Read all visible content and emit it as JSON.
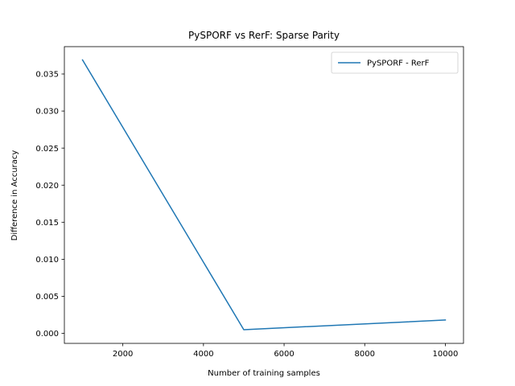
{
  "chart_data": {
    "type": "line",
    "title": "PySPORF vs RerF: Sparse Parity",
    "xlabel": "Number of training samples",
    "ylabel": "Difference in Accuracy",
    "xlim": [
      550,
      10450
    ],
    "ylim": [
      -0.00135,
      0.03869
    ],
    "xticks": [
      2000,
      4000,
      6000,
      8000,
      10000
    ],
    "xtick_labels": [
      "2000",
      "4000",
      "6000",
      "8000",
      "10000"
    ],
    "yticks": [
      0.0,
      0.005,
      0.01,
      0.015,
      0.02,
      0.025,
      0.03,
      0.035
    ],
    "ytick_labels": [
      "0.000",
      "0.005",
      "0.010",
      "0.015",
      "0.020",
      "0.025",
      "0.030",
      "0.035"
    ],
    "grid": false,
    "legend_position": "top-right",
    "series": [
      {
        "name": "PySPORF - RerF",
        "color": "#1f77b4",
        "x": [
          1000,
          5000,
          10000
        ],
        "y": [
          0.0369,
          0.0005,
          0.0018
        ]
      }
    ]
  }
}
